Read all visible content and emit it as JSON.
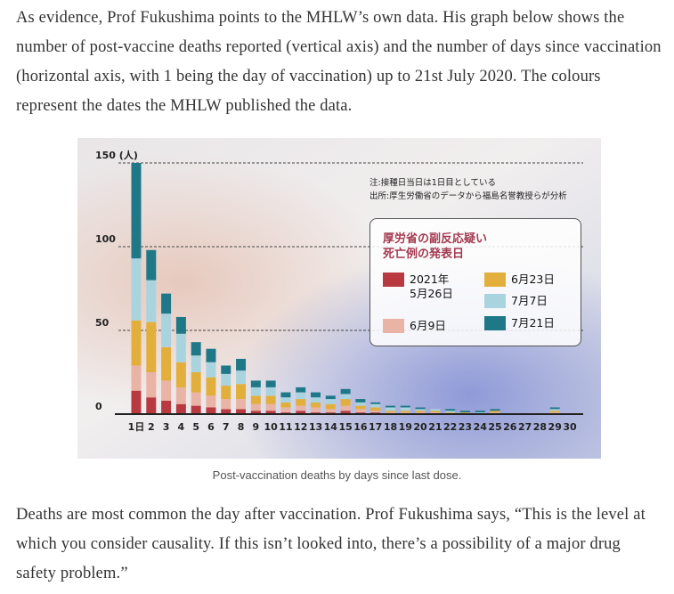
{
  "intro": "As evidence, Prof Fukushima points to the MHLW’s own data. His graph below shows the number of post-vaccine deaths reported (vertical axis) and the number of days since vaccination (horizontal axis, with 1 being the day of vaccination) up to 21st July 2020. The colours represent the dates the MHLW published the data.",
  "chart_data": {
    "type": "bar",
    "stacked": true,
    "legend_title": "厚労省の副反応疑い\n死亡例の発表日",
    "annotations": [
      "注:接種日当日は1日目としている",
      "出所:厚生労働省のデータから福島名誉教授らが分析"
    ],
    "categories": [
      "1日",
      "2",
      "3",
      "4",
      "5",
      "6",
      "7",
      "8",
      "9",
      "10",
      "11",
      "12",
      "13",
      "14",
      "15",
      "16",
      "17",
      "18",
      "19",
      "20",
      "21",
      "22",
      "23",
      "24",
      "25",
      "26",
      "27",
      "28",
      "29",
      "30"
    ],
    "series": [
      {
        "name": "2021年\n5月26日",
        "color": "#b83a40",
        "values": [
          14,
          10,
          8,
          6,
          5,
          4,
          3,
          3,
          2,
          2,
          1,
          2,
          1,
          1,
          2,
          1,
          1,
          0,
          0,
          0,
          0,
          0,
          0,
          0,
          0,
          0,
          0,
          0,
          0,
          0
        ]
      },
      {
        "name": "6月9日",
        "color": "#e9b3a6",
        "values": [
          15,
          15,
          12,
          10,
          8,
          7,
          6,
          6,
          4,
          4,
          3,
          3,
          3,
          2,
          3,
          2,
          1,
          1,
          1,
          1,
          1,
          0,
          0,
          0,
          1,
          0,
          0,
          0,
          1,
          0
        ]
      },
      {
        "name": "6月23日",
        "color": "#e2af3c",
        "values": [
          27,
          30,
          20,
          15,
          12,
          11,
          8,
          9,
          5,
          5,
          3,
          4,
          3,
          3,
          4,
          2,
          2,
          1,
          1,
          1,
          1,
          1,
          1,
          0,
          1,
          0,
          0,
          0,
          1,
          0
        ]
      },
      {
        "name": "7月7日",
        "color": "#a9d4df",
        "values": [
          37,
          25,
          20,
          17,
          10,
          9,
          7,
          8,
          5,
          5,
          3,
          4,
          3,
          3,
          3,
          2,
          2,
          2,
          2,
          1,
          1,
          1,
          0,
          1,
          0,
          0,
          0,
          0,
          1,
          0
        ]
      },
      {
        "name": "7月21日",
        "color": "#1f7888",
        "values": [
          57,
          18,
          12,
          10,
          8,
          8,
          5,
          7,
          4,
          4,
          3,
          3,
          3,
          2,
          3,
          2,
          1,
          1,
          1,
          1,
          0,
          1,
          1,
          1,
          1,
          0,
          0,
          0,
          1,
          0
        ]
      }
    ],
    "ylim": [
      0,
      150
    ],
    "yticks": [
      0,
      50,
      100,
      {
        "value": 150,
        "label": "150 (人)"
      }
    ]
  },
  "caption": "Post-vaccination deaths by days since last dose.",
  "outro": "Deaths are most common the day after vaccination. Prof Fukushima says, “This is the level at which you consider causality.  If this isn’t looked into, there’s a possibility of a major drug safety problem.”"
}
